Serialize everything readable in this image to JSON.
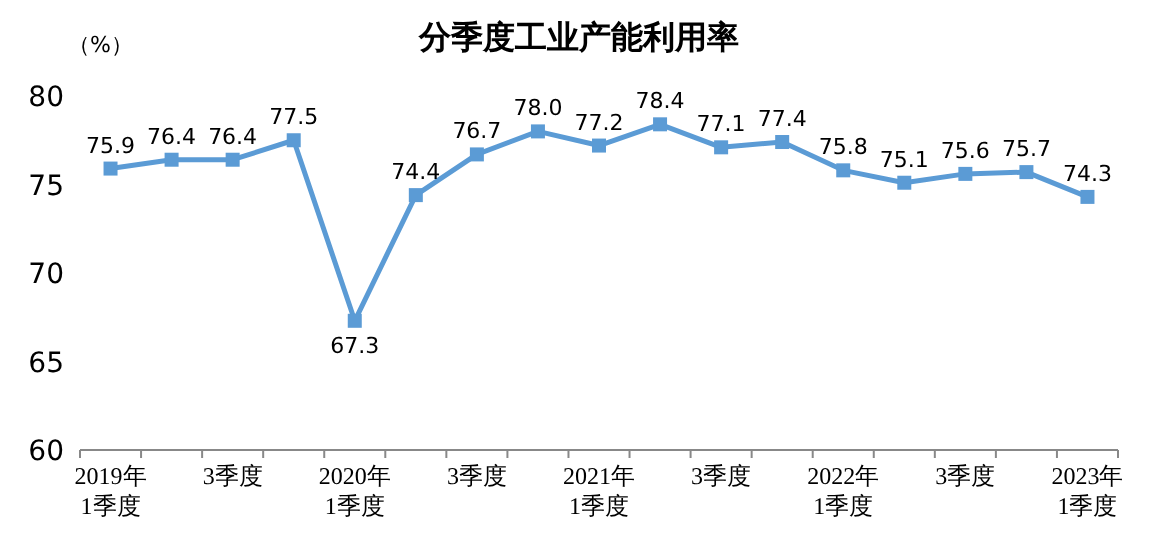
{
  "chart_data": {
    "type": "line",
    "title": "分季度工业产能利用率",
    "ylabel": "（%）",
    "categories": [
      "2019年\n1季度",
      null,
      "3季度",
      null,
      "2020年\n1季度",
      null,
      "3季度",
      null,
      "2021年\n1季度",
      null,
      "3季度",
      null,
      "2022年\n1季度",
      null,
      "3季度",
      null,
      "2023年\n1季度"
    ],
    "series": [
      {
        "color": "#5b9bd5",
        "values": [
          75.9,
          76.4,
          76.4,
          77.5,
          67.3,
          74.4,
          76.7,
          78.0,
          77.2,
          78.4,
          77.1,
          77.4,
          75.8,
          75.1,
          75.6,
          75.7,
          74.3
        ],
        "value_labels": [
          "75.9",
          "76.4",
          "76.4",
          "77.5",
          "67.3",
          "74.4",
          "76.7",
          "78.0",
          "77.2",
          "78.4",
          "77.1",
          "77.4",
          "75.8",
          "75.1",
          "75.6",
          "75.7",
          "74.3"
        ]
      }
    ],
    "ylim": [
      60,
      80
    ],
    "yticks": [
      60,
      65,
      70,
      75,
      80
    ],
    "grid": false,
    "marker": "square",
    "line_style": "solid"
  }
}
